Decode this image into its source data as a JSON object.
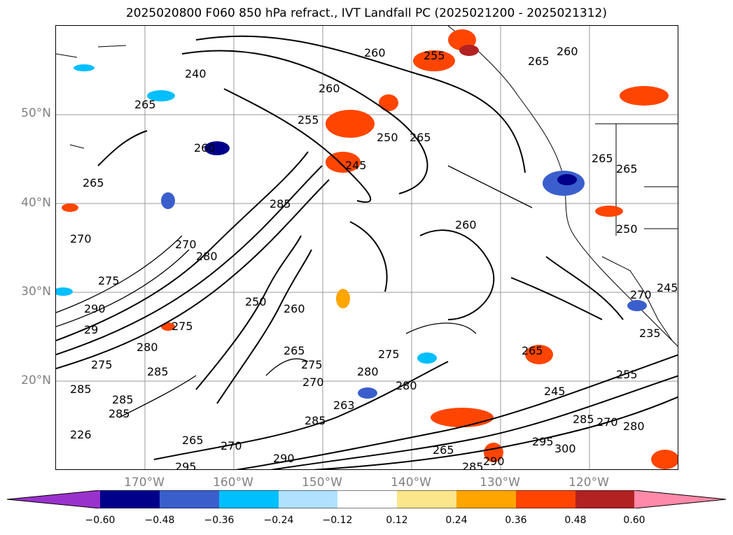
{
  "title": "2025020800 F060 850 hPa refract., IVT Landfall PC (2025021200 - 2025021312)",
  "lat_labels": [
    "50°N",
    "40°N",
    "30°N",
    "20°N"
  ],
  "lon_labels": [
    "170°W",
    "160°W",
    "150°W",
    "140°W",
    "130°W",
    "120°W"
  ],
  "colorbar": {
    "ticks": [
      "−0.60",
      "−0.48",
      "−0.36",
      "−0.24",
      "−0.12",
      "0.12",
      "0.24",
      "0.36",
      "0.48",
      "0.60"
    ],
    "colors": [
      "#9932cc",
      "#00008b",
      "#3a5fcd",
      "#00bfff",
      "#b0e2ff",
      "#ffffff",
      "#fce68c",
      "#ffa500",
      "#ff4500",
      "#b22222",
      "#ff89a8"
    ]
  },
  "contour_labels": [
    "260",
    "255",
    "240",
    "265",
    "260",
    "265",
    "260",
    "260",
    "265",
    "255",
    "250",
    "265",
    "245",
    "265",
    "265",
    "285",
    "270",
    "280",
    "275",
    "290",
    "260",
    "250",
    "270",
    "250",
    "29",
    "275",
    "280",
    "285",
    "260",
    "275",
    "280",
    "285",
    "265",
    "275",
    "285",
    "270",
    "280",
    "275",
    "245",
    "245",
    "235",
    "263",
    "285",
    "265",
    "270",
    "285",
    "270",
    "290",
    "285",
    "265",
    "295",
    "290",
    "285",
    "300",
    "280",
    "255",
    "270",
    "295",
    "226",
    "265"
  ]
}
